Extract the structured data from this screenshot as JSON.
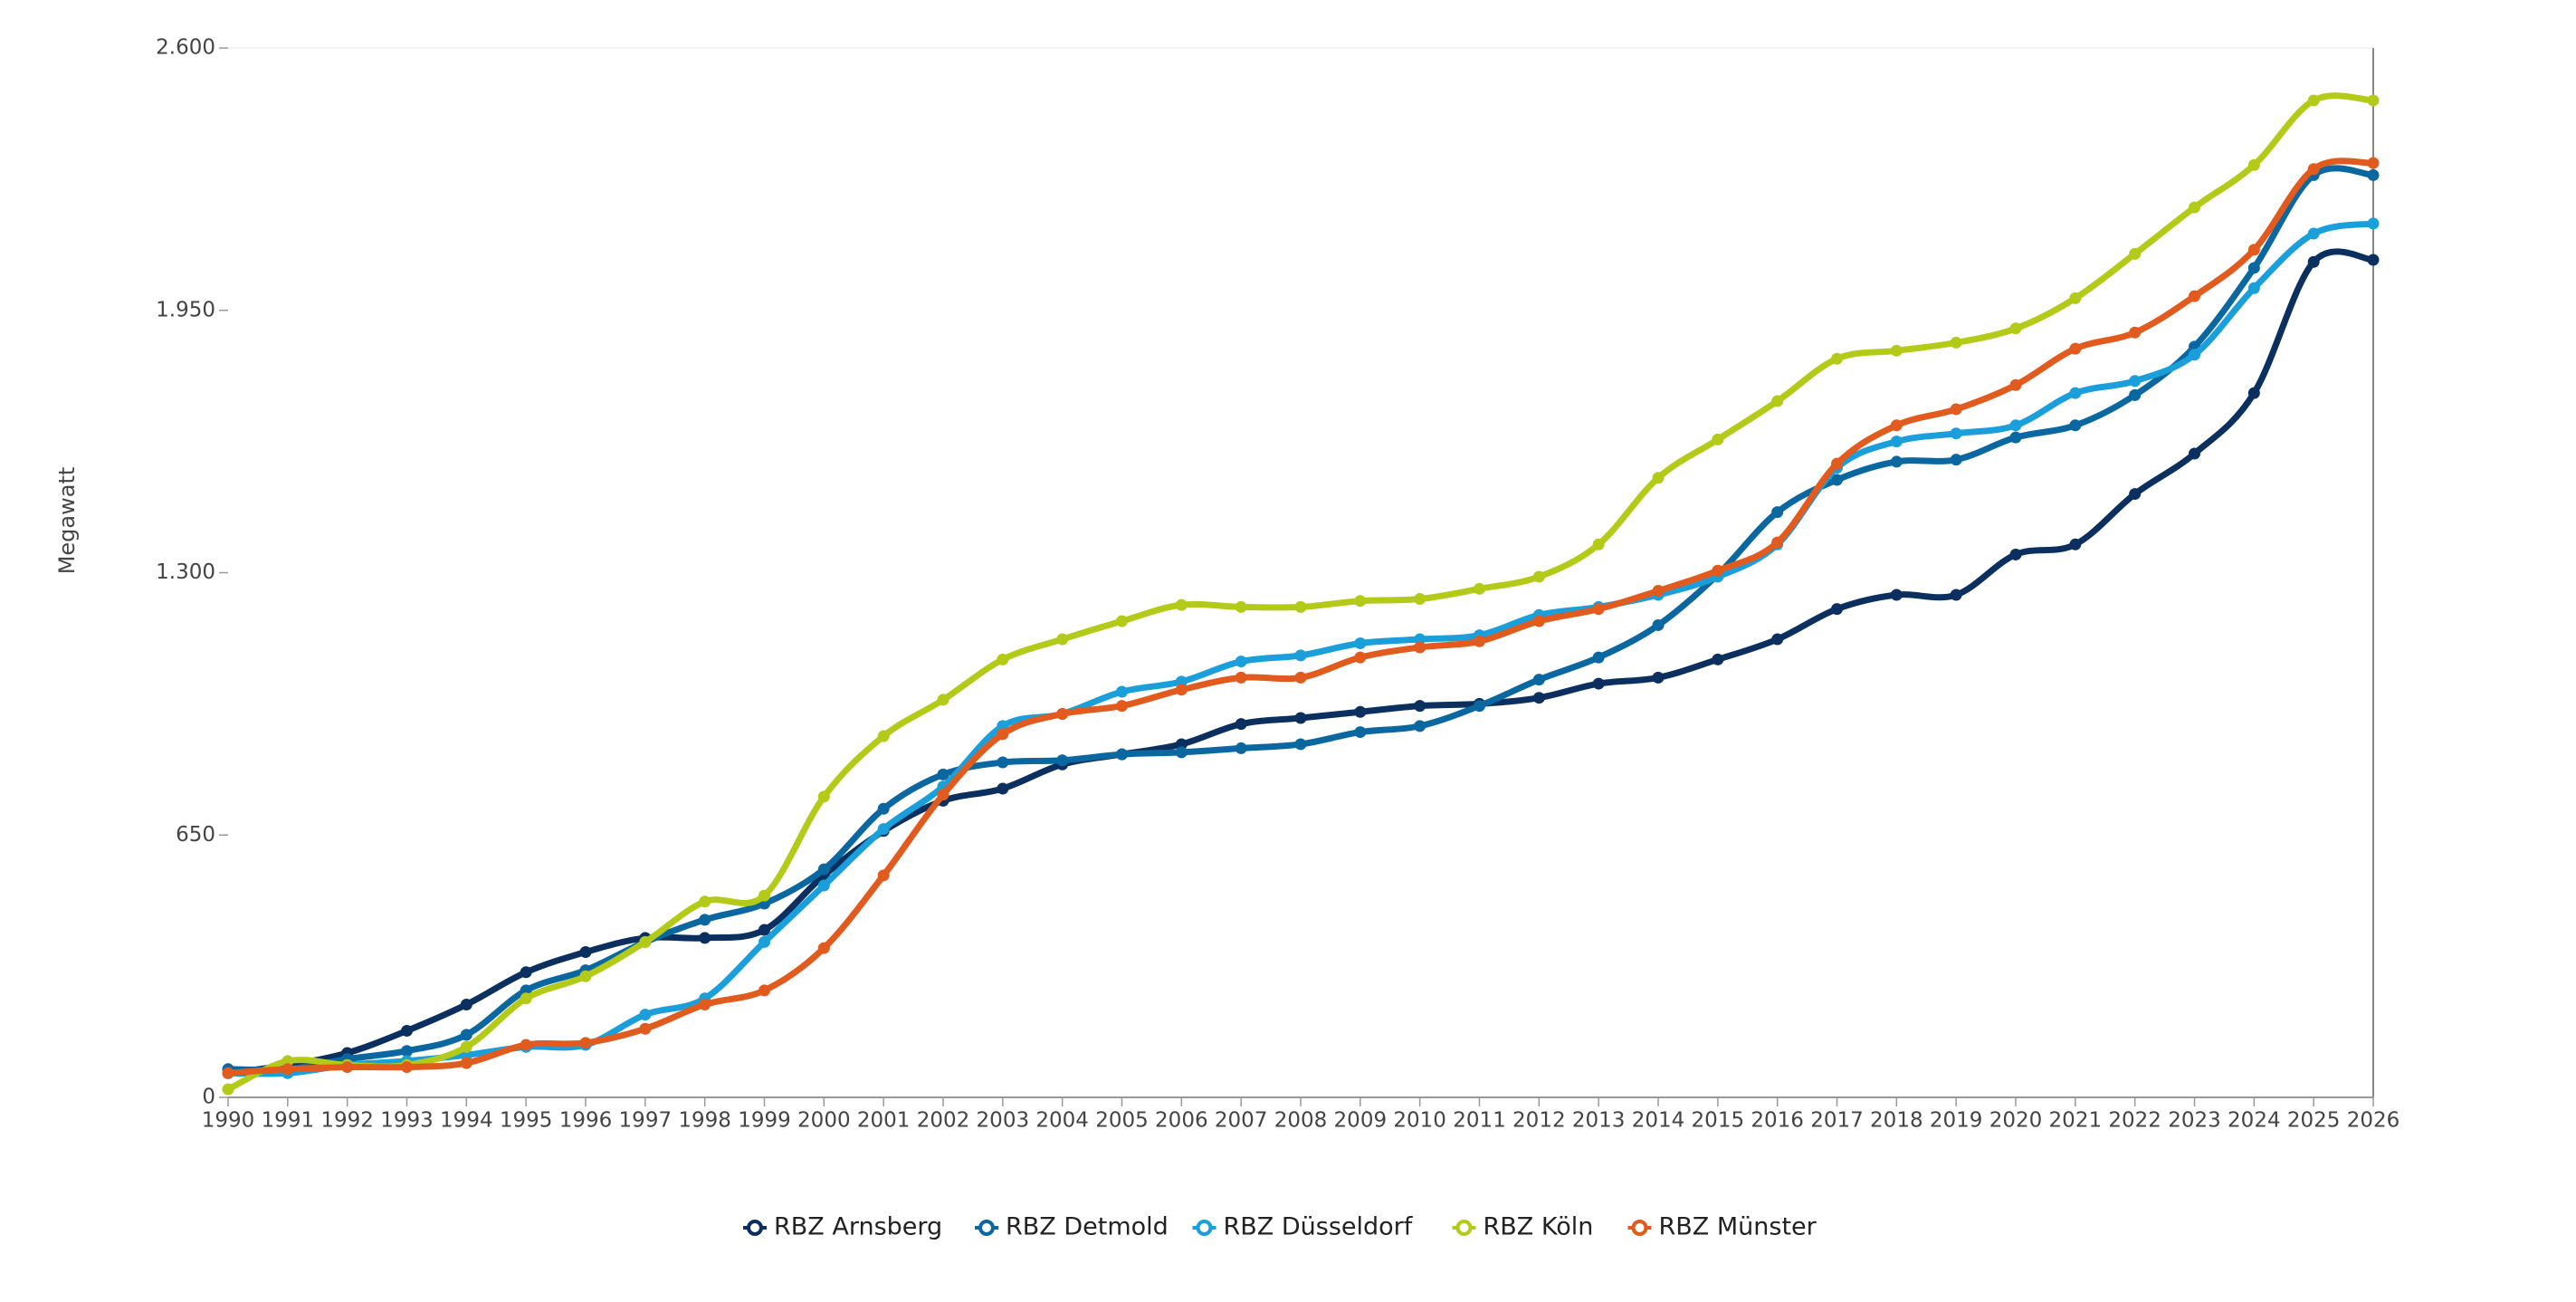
{
  "chart_data": {
    "type": "line",
    "y_label": "Megawatt",
    "categories": [
      "1990",
      "1991",
      "1992",
      "1993",
      "1994",
      "1995",
      "1996",
      "1997",
      "1998",
      "1999",
      "2000",
      "2001",
      "2002",
      "2003",
      "2004",
      "2005",
      "2006",
      "2007",
      "2008",
      "2009",
      "2010",
      "2011",
      "2012",
      "2013",
      "2014",
      "2015",
      "2016",
      "2017",
      "2018",
      "2019",
      "2020",
      "2021",
      "2022",
      "2023",
      "2024",
      "2025",
      "2026"
    ],
    "ylim": [
      0,
      2600
    ],
    "yticks": [
      0,
      650,
      {
        "value": 1300,
        "label": "1.300"
      },
      {
        "value": 1950,
        "label": "1.950"
      },
      {
        "value": 2600,
        "label": "2.600"
      }
    ],
    "grid": false,
    "legend": "bottom",
    "series": [
      {
        "name": "RBZ Arnsberg",
        "color": "#0b2f5e",
        "values": [
          60,
          80,
          110,
          165,
          230,
          310,
          360,
          395,
          395,
          415,
          550,
          660,
          735,
          765,
          825,
          850,
          875,
          925,
          940,
          955,
          970,
          975,
          990,
          1025,
          1040,
          1085,
          1135,
          1210,
          1245,
          1245,
          1345,
          1370,
          1495,
          1595,
          1745,
          2070,
          2075
        ]
      },
      {
        "name": "RBZ Detmold",
        "color": "#0b67a0",
        "values": [
          70,
          70,
          95,
          115,
          155,
          265,
          315,
          385,
          440,
          480,
          565,
          715,
          800,
          830,
          835,
          850,
          855,
          865,
          875,
          905,
          920,
          970,
          1035,
          1090,
          1170,
          1295,
          1450,
          1530,
          1575,
          1580,
          1635,
          1665,
          1740,
          1860,
          2055,
          2285,
          2285
        ]
      },
      {
        "name": "RBZ Düsseldorf",
        "color": "#1a9fdb",
        "values": [
          60,
          60,
          80,
          90,
          105,
          125,
          130,
          205,
          245,
          385,
          525,
          665,
          770,
          920,
          950,
          1005,
          1030,
          1080,
          1095,
          1125,
          1135,
          1145,
          1195,
          1215,
          1245,
          1290,
          1370,
          1560,
          1625,
          1645,
          1665,
          1745,
          1775,
          1840,
          2005,
          2140,
          2165
        ]
      },
      {
        "name": "RBZ Köln",
        "color": "#b3cb18",
        "values": [
          20,
          90,
          80,
          80,
          125,
          245,
          300,
          385,
          485,
          500,
          745,
          895,
          985,
          1085,
          1135,
          1180,
          1220,
          1215,
          1215,
          1230,
          1235,
          1260,
          1290,
          1370,
          1535,
          1630,
          1725,
          1830,
          1850,
          1870,
          1905,
          1980,
          2090,
          2205,
          2310,
          2470,
          2470
        ]
      },
      {
        "name": "RBZ Münster",
        "color": "#e15a1e",
        "values": [
          60,
          70,
          75,
          75,
          85,
          130,
          135,
          170,
          230,
          265,
          370,
          550,
          750,
          900,
          950,
          970,
          1010,
          1040,
          1040,
          1090,
          1115,
          1130,
          1180,
          1210,
          1255,
          1305,
          1375,
          1570,
          1665,
          1705,
          1765,
          1855,
          1895,
          1985,
          2100,
          2300,
          2315
        ]
      }
    ]
  }
}
